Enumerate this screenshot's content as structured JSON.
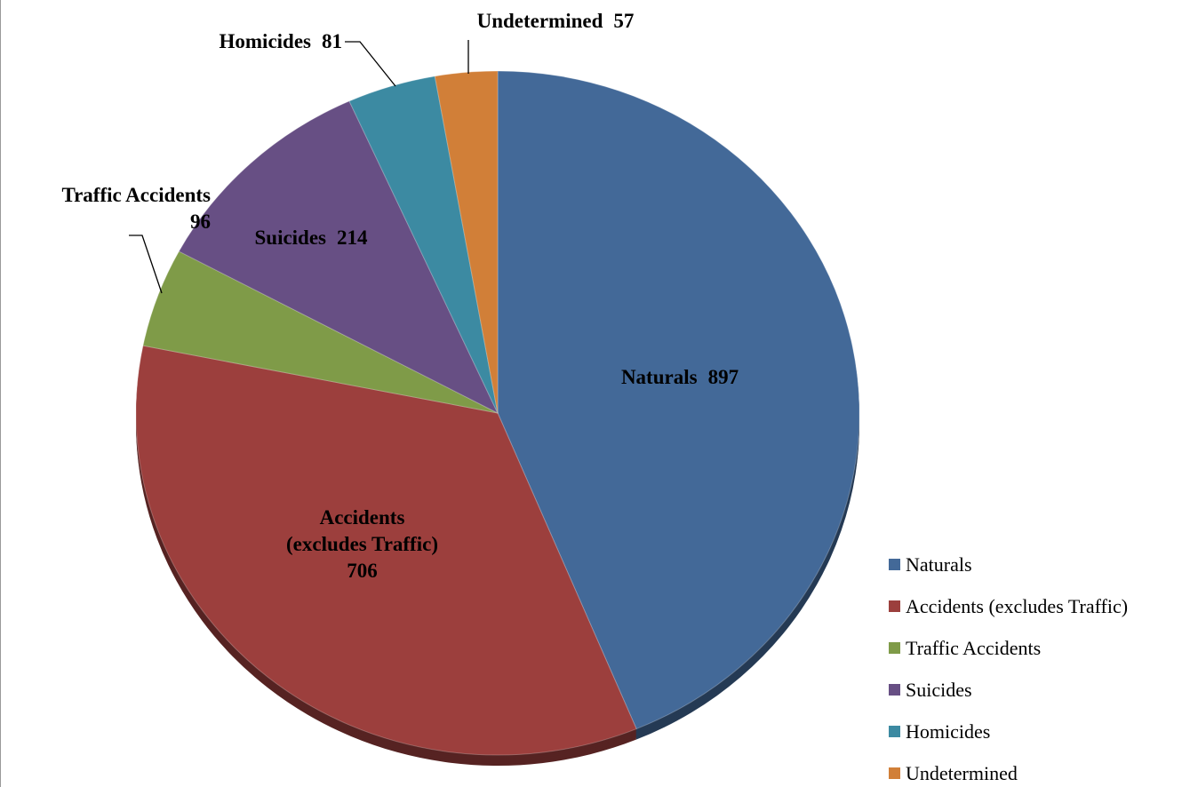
{
  "chart_data": {
    "type": "pie",
    "categories": [
      "Naturals",
      "Accidents (excludes Traffic)",
      "Traffic Accidents",
      "Suicides",
      "Homicides",
      "Undetermined"
    ],
    "values": [
      897,
      706,
      96,
      214,
      81,
      57
    ],
    "colors": [
      "#436998",
      "#9c3f3d",
      "#7f9b48",
      "#674f84",
      "#3c8aa2",
      "#d17f38"
    ],
    "legend": "right"
  }
}
